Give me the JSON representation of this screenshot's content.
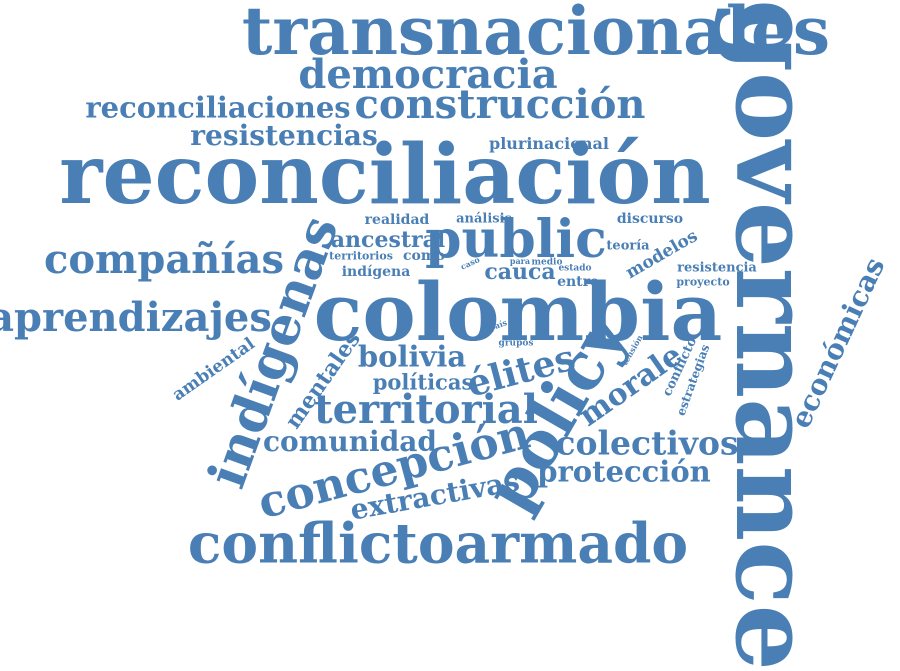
{
  "color": "#4a7fb5",
  "words": [
    {
      "key": "w1",
      "text": "transnacionales"
    },
    {
      "key": "w2",
      "text": "governance"
    },
    {
      "key": "w3",
      "text": "democracia"
    },
    {
      "key": "w4",
      "text": "reconciliaciones"
    },
    {
      "key": "w5",
      "text": "construcción"
    },
    {
      "key": "w6",
      "text": "resistencias"
    },
    {
      "key": "w7",
      "text": "plurinacional"
    },
    {
      "key": "w8",
      "text": "reconciliación"
    },
    {
      "key": "w9",
      "text": "realidad"
    },
    {
      "key": "w10",
      "text": "análisis"
    },
    {
      "key": "w11",
      "text": "discurso"
    },
    {
      "key": "w12",
      "text": "public"
    },
    {
      "key": "w13",
      "text": "ancestral"
    },
    {
      "key": "w14",
      "text": "teoría"
    },
    {
      "key": "w15",
      "text": "modelos"
    },
    {
      "key": "w16",
      "text": "compañías"
    },
    {
      "key": "w17",
      "text": "indígenas"
    },
    {
      "key": "w18",
      "text": "territorios"
    },
    {
      "key": "w19",
      "text": "como"
    },
    {
      "key": "w20",
      "text": "indígena"
    },
    {
      "key": "w21",
      "text": "caso"
    },
    {
      "key": "w22",
      "text": "cauca"
    },
    {
      "key": "w23",
      "text": "para"
    },
    {
      "key": "w24",
      "text": "medio"
    },
    {
      "key": "w25",
      "text": "estado"
    },
    {
      "key": "w26",
      "text": "entre"
    },
    {
      "key": "w27",
      "text": "resistencia"
    },
    {
      "key": "w28",
      "text": "proyecto"
    },
    {
      "key": "w29",
      "text": "económicas"
    },
    {
      "key": "w30",
      "text": "aprendizajes"
    },
    {
      "key": "w31",
      "text": "colombia"
    },
    {
      "key": "w32",
      "text": "país"
    },
    {
      "key": "w33",
      "text": "grupos"
    },
    {
      "key": "w34",
      "text": "tensión"
    },
    {
      "key": "w35",
      "text": "conflicto"
    },
    {
      "key": "w36",
      "text": "estrategias"
    },
    {
      "key": "w37",
      "text": "ambiental"
    },
    {
      "key": "w38",
      "text": "mentales"
    },
    {
      "key": "w39",
      "text": "bolivia"
    },
    {
      "key": "w40",
      "text": "políticas"
    },
    {
      "key": "w41",
      "text": "élites"
    },
    {
      "key": "w42",
      "text": "policy"
    },
    {
      "key": "w43",
      "text": "morale"
    },
    {
      "key": "w44",
      "text": "territorial"
    },
    {
      "key": "w45",
      "text": "comunidad"
    },
    {
      "key": "w46",
      "text": "colectivos"
    },
    {
      "key": "w47",
      "text": "concepción"
    },
    {
      "key": "w48",
      "text": "protección"
    },
    {
      "key": "w49",
      "text": "extractivas"
    },
    {
      "key": "w50",
      "text": "conflictoarmado"
    }
  ]
}
